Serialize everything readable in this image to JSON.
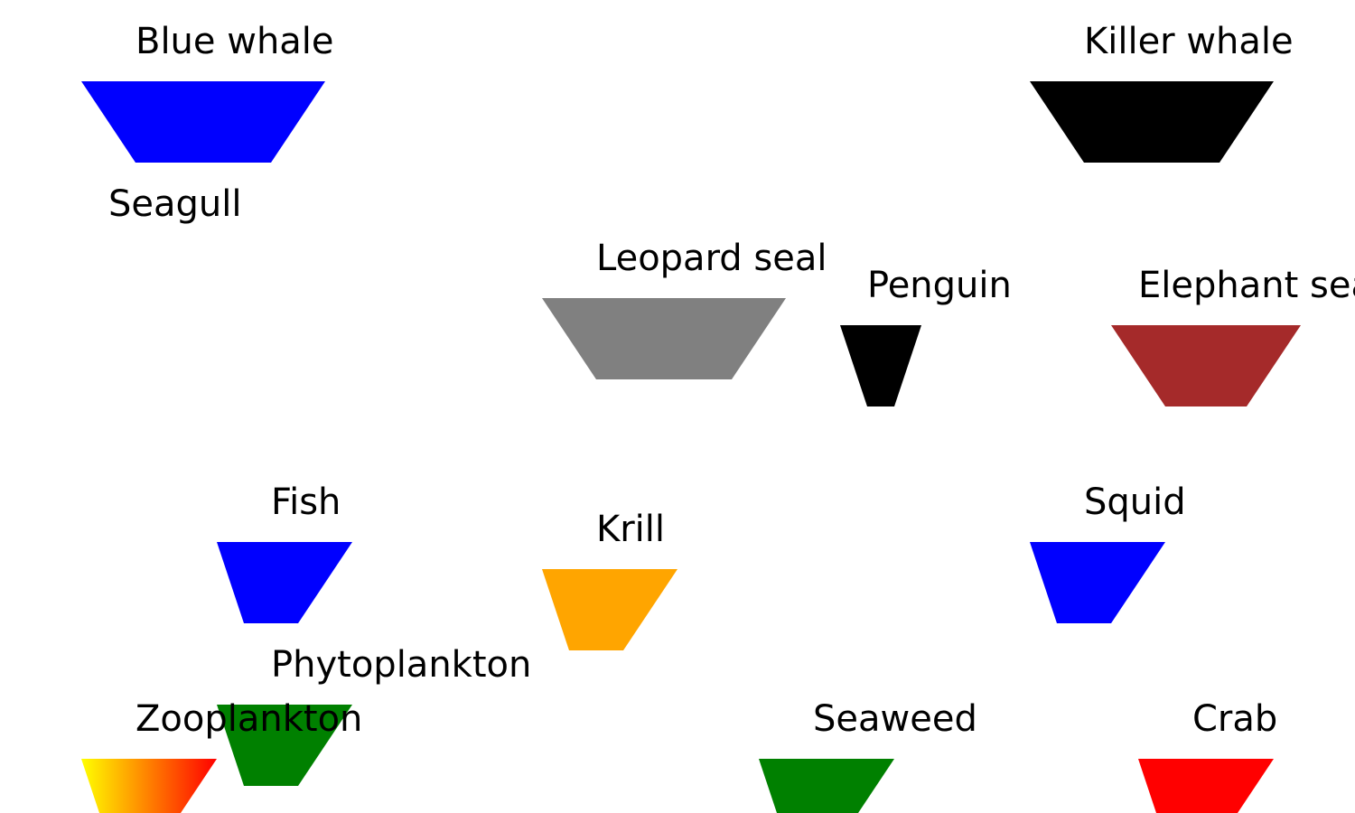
{
  "organisms": [
    {
      "id": "blue-whale",
      "label": "Blue whale",
      "color": "#0000ff"
    },
    {
      "id": "killer-whale",
      "label": "Killer whale",
      "color": "#000000"
    },
    {
      "id": "seagull",
      "label": "Seagull",
      "color": ""
    },
    {
      "id": "leopard-seal",
      "label": "Leopard seal",
      "color": "#808080"
    },
    {
      "id": "penguin",
      "label": "Penguin",
      "color": "#000000"
    },
    {
      "id": "elephant-seal",
      "label": "Elephant seal",
      "color": "#a52a2a"
    },
    {
      "id": "fish",
      "label": "Fish",
      "color": "#0000ff"
    },
    {
      "id": "krill",
      "label": "Krill",
      "color": "#ffa500"
    },
    {
      "id": "squid",
      "label": "Squid",
      "color": "#0000ff"
    },
    {
      "id": "phytoplankton",
      "label": "Phytoplankton",
      "color": "#008000"
    },
    {
      "id": "zooplankton",
      "label": "Zooplankton",
      "color": "gradient:#ffff00-#ff0000"
    },
    {
      "id": "seaweed",
      "label": "Seaweed",
      "color": "#008000"
    },
    {
      "id": "crab",
      "label": "Crab",
      "color": "#ff0000"
    }
  ]
}
